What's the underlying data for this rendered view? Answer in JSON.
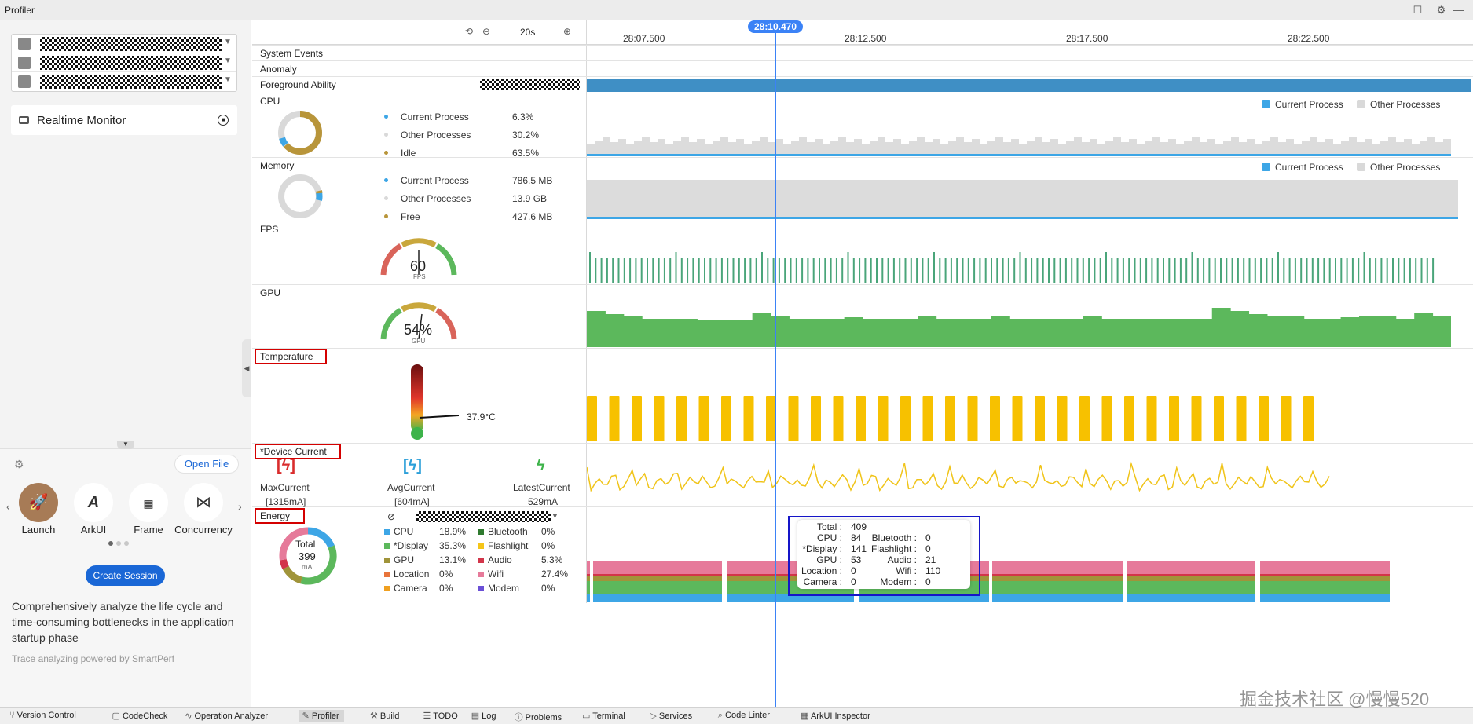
{
  "window": {
    "title": "Profiler"
  },
  "realtime_monitor": {
    "label": "Realtime Monitor"
  },
  "toolbar": {
    "zoom": "20s",
    "cursor_time": "28:10.470"
  },
  "timeline": {
    "ticks": [
      "28:07.500",
      "28:12.500",
      "28:17.500",
      "28:22.500"
    ]
  },
  "rows": {
    "system_events": "System Events",
    "anomaly": "Anomaly",
    "foreground": "Foreground Ability",
    "cpu": {
      "label": "CPU",
      "items": [
        {
          "name": "Current Process",
          "value": "6.3%",
          "color": "#3da6e6"
        },
        {
          "name": "Other Processes",
          "value": "30.2%",
          "color": "#d9d9d9"
        },
        {
          "name": "Idle",
          "value": "63.5%",
          "color": "#b8953a"
        }
      ],
      "legend": [
        "Current Process",
        "Other Processes"
      ]
    },
    "memory": {
      "label": "Memory",
      "items": [
        {
          "name": "Current Process",
          "value": "786.5 MB",
          "color": "#3da6e6"
        },
        {
          "name": "Other Processes",
          "value": "13.9 GB",
          "color": "#d9d9d9"
        },
        {
          "name": "Free",
          "value": "427.6 MB",
          "color": "#b8953a"
        }
      ],
      "legend": [
        "Current Process",
        "Other Processes"
      ]
    },
    "fps": {
      "label": "FPS",
      "value": "60",
      "unit": "FPS"
    },
    "gpu": {
      "label": "GPU",
      "value": "54%",
      "unit": "GPU"
    },
    "temperature": {
      "label": "Temperature",
      "value": "37.9°C"
    },
    "device_current": {
      "label": "*Device Current",
      "max_label": "MaxCurrent",
      "max_value": "[1315mA]",
      "avg_label": "AvgCurrent",
      "avg_value": "[604mA]",
      "latest_label": "LatestCurrent",
      "latest_value": "529mA"
    },
    "energy": {
      "label": "Energy",
      "total_label": "Total",
      "total_value": "399",
      "total_unit": "mA",
      "left_items": [
        {
          "name": "CPU",
          "value": "18.9%",
          "color": "#3da6e6"
        },
        {
          "name": "*Display",
          "value": "35.3%",
          "color": "#5cb85c"
        },
        {
          "name": "GPU",
          "value": "13.1%",
          "color": "#a0943a"
        },
        {
          "name": "Location",
          "value": "0%",
          "color": "#e8743b"
        },
        {
          "name": "Camera",
          "value": "0%",
          "color": "#f0a020"
        }
      ],
      "right_items": [
        {
          "name": "Bluetooth",
          "value": "0%",
          "color": "#2f7a2f"
        },
        {
          "name": "Flashlight",
          "value": "0%",
          "color": "#f5c518"
        },
        {
          "name": "Audio",
          "value": "5.3%",
          "color": "#d2354a"
        },
        {
          "name": "Wifi",
          "value": "27.4%",
          "color": "#e67a9a"
        },
        {
          "name": "Modem",
          "value": "0%",
          "color": "#6a4fd6"
        }
      ]
    }
  },
  "tooltip": {
    "rows": [
      [
        "Total :",
        "409",
        "",
        ""
      ],
      [
        "CPU :",
        "84",
        "Bluetooth :",
        "0"
      ],
      [
        "*Display :",
        "141",
        "Flashlight :",
        "0"
      ],
      [
        "GPU :",
        "53",
        "Audio :",
        "21"
      ],
      [
        "Location :",
        "0",
        "Wifi :",
        "110"
      ],
      [
        "Camera :",
        "0",
        "Modem :",
        "0"
      ]
    ]
  },
  "left_panel": {
    "open_file": "Open File",
    "tools": [
      "Launch",
      "ArkUI",
      "Frame",
      "Concurrency"
    ],
    "create_session": "Create Session",
    "description": "Comprehensively analyze the life cycle and time-consuming bottlenecks in the application startup phase",
    "powered": "Trace analyzing powered by SmartPerf"
  },
  "bottom_tabs": [
    "Version Control",
    "CodeCheck",
    "Operation Analyzer",
    "Profiler",
    "Build",
    "TODO",
    "Log",
    "Problems",
    "Terminal",
    "Services",
    "Code Linter",
    "ArkUI Inspector"
  ],
  "watermark": "掘金技术社区 @慢慢520"
}
